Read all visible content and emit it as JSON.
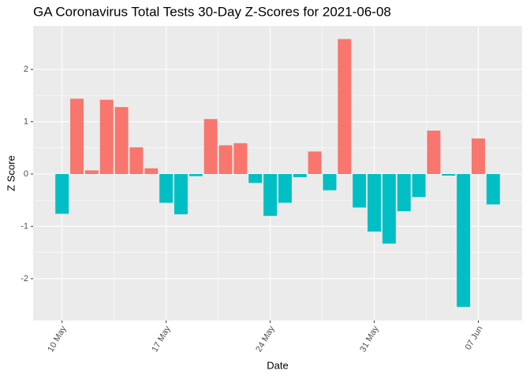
{
  "chart_data": {
    "type": "bar",
    "title": "GA Coronavirus Total Tests 30-Day Z-Scores for 2021-06-08",
    "x_label": "Date",
    "y_label": "Z Score",
    "categories": [
      "10 May",
      null,
      null,
      null,
      null,
      null,
      null,
      "17 May",
      null,
      null,
      null,
      null,
      null,
      null,
      "24 May",
      null,
      null,
      null,
      null,
      null,
      null,
      "31 May",
      null,
      null,
      null,
      null,
      null,
      null,
      "07 Jun",
      null
    ],
    "values": [
      -0.76,
      1.44,
      0.07,
      1.42,
      1.28,
      0.51,
      0.11,
      -0.55,
      -0.77,
      -0.04,
      1.05,
      0.55,
      0.59,
      -0.17,
      -0.8,
      -0.55,
      -0.06,
      0.43,
      -0.31,
      2.58,
      -0.64,
      -1.1,
      -1.33,
      -0.71,
      -0.44,
      0.83,
      -0.03,
      -2.54,
      0.68,
      -0.58
    ],
    "positive_color": "#F8766D",
    "negative_color": "#00BFC4",
    "ylim": [
      -2.8,
      2.83
    ],
    "yticks": [
      -2,
      -1,
      0,
      1,
      2
    ],
    "grid": true
  }
}
